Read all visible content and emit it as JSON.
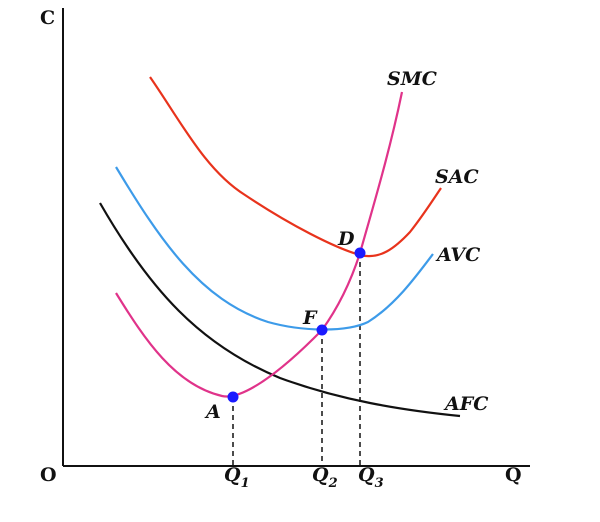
{
  "diagram": {
    "axes": {
      "y_label": "C",
      "x_label": "Q",
      "origin_label": "O"
    },
    "curves": [
      {
        "id": "smc",
        "label": "SMC",
        "color": "#e0338a"
      },
      {
        "id": "sac",
        "label": "SAC",
        "color": "#e8331c"
      },
      {
        "id": "avc",
        "label": "AVC",
        "color": "#3d9be9"
      },
      {
        "id": "afc",
        "label": "AFC",
        "color": "#111111"
      }
    ],
    "points": [
      {
        "id": "A",
        "label": "A",
        "color": "#1a1aff"
      },
      {
        "id": "F",
        "label": "F",
        "color": "#1a1aff"
      },
      {
        "id": "D",
        "label": "D",
        "color": "#1a1aff"
      }
    ],
    "ticks": [
      {
        "base": "Q",
        "sub": "1"
      },
      {
        "base": "Q",
        "sub": "2"
      },
      {
        "base": "Q",
        "sub": "3"
      }
    ]
  }
}
